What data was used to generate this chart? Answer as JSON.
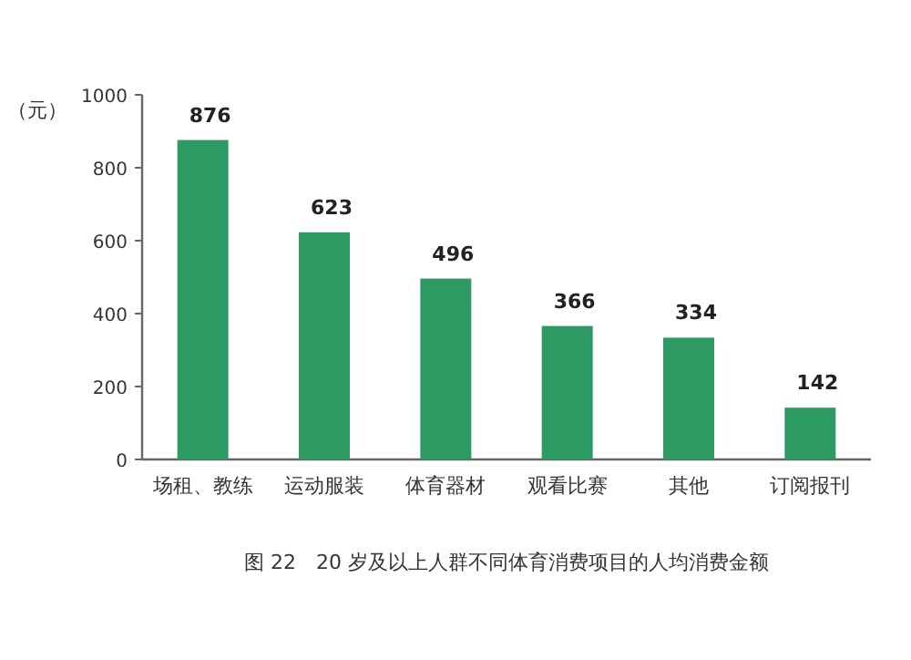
{
  "chart_data": {
    "type": "bar",
    "title": "图 22　20 岁及以上人群不同体育消费项目的人均消费金额",
    "ylabel": "（元）",
    "categories": [
      "场租、教练",
      "运动服装",
      "体育器材",
      "观看比赛",
      "其他",
      "订阅报刊"
    ],
    "values": [
      876,
      623,
      496,
      366,
      334,
      142
    ],
    "color": "#2e9a63",
    "ylim": [
      0,
      1000
    ],
    "yticks": [
      0,
      200,
      400,
      600,
      800,
      1000
    ],
    "data_labels": true,
    "grid": false
  }
}
